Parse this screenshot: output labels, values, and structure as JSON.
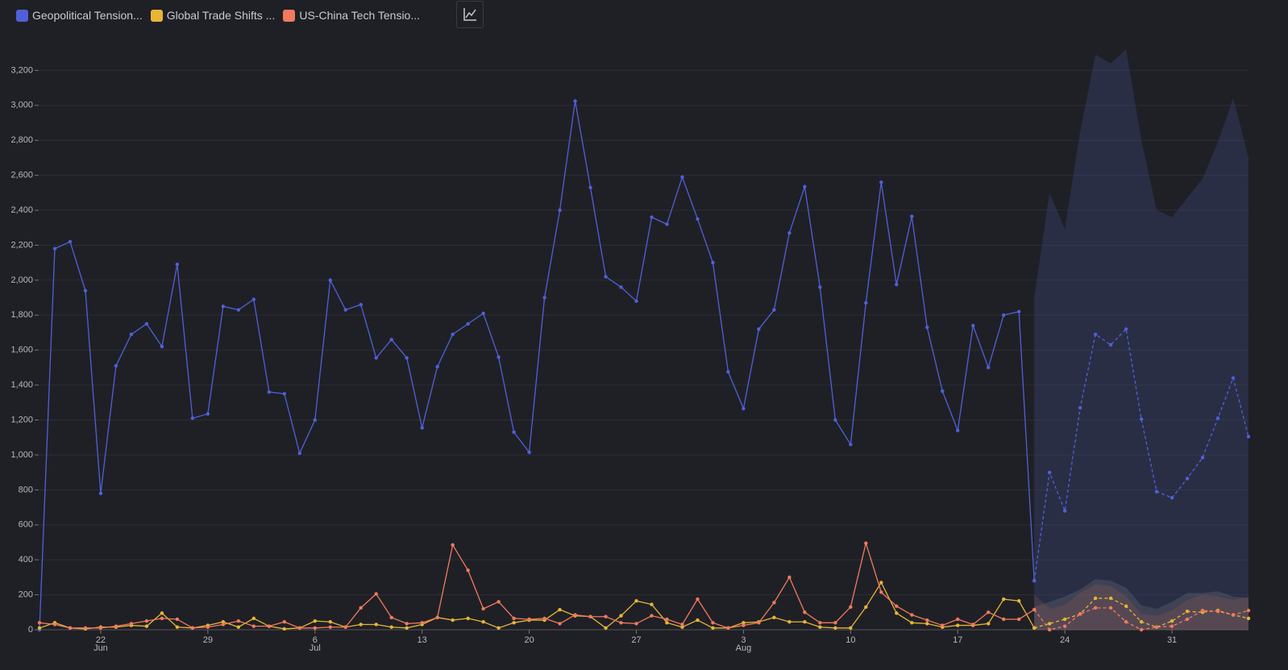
{
  "chart_data": {
    "type": "line",
    "x": [
      "Jun 18",
      "Jun 19",
      "Jun 20",
      "Jun 21",
      "Jun 22",
      "Jun 23",
      "Jun 24",
      "Jun 25",
      "Jun 26",
      "Jun 27",
      "Jun 28",
      "Jun 29",
      "Jun 30",
      "Jul 1",
      "Jul 2",
      "Jul 3",
      "Jul 4",
      "Jul 5",
      "Jul 6",
      "Jul 7",
      "Jul 8",
      "Jul 9",
      "Jul 10",
      "Jul 11",
      "Jul 12",
      "Jul 13",
      "Jul 14",
      "Jul 15",
      "Jul 16",
      "Jul 17",
      "Jul 18",
      "Jul 19",
      "Jul 20",
      "Jul 21",
      "Jul 22",
      "Jul 23",
      "Jul 24",
      "Jul 25",
      "Jul 26",
      "Jul 27",
      "Jul 28",
      "Jul 29",
      "Jul 30",
      "Jul 31",
      "Aug 1",
      "Aug 2",
      "Aug 3",
      "Aug 4",
      "Aug 5",
      "Aug 6",
      "Aug 7",
      "Aug 8",
      "Aug 9",
      "Aug 10",
      "Aug 11",
      "Aug 12",
      "Aug 13",
      "Aug 14",
      "Aug 15",
      "Aug 16",
      "Aug 17",
      "Aug 18",
      "Aug 19",
      "Aug 20",
      "Aug 21",
      "Aug 22"
    ],
    "forecast_x": [
      "Aug 22",
      "Aug 23",
      "Aug 24",
      "Aug 25",
      "Aug 26",
      "Aug 27",
      "Aug 28",
      "Aug 29",
      "Aug 30",
      "Aug 31",
      "Sep 1",
      "Sep 2",
      "Sep 3",
      "Sep 4",
      "Sep 5"
    ],
    "series": [
      {
        "name": "Geopolitical Tension...",
        "color": "#5060d8",
        "band_color": "rgba(70,82,150,0.28)",
        "values": [
          0,
          2180,
          2220,
          1940,
          780,
          1510,
          1690,
          1750,
          1620,
          2090,
          1210,
          1235,
          1850,
          1830,
          1890,
          1360,
          1350,
          1010,
          1200,
          2000,
          1830,
          1860,
          1555,
          1660,
          1555,
          1155,
          1505,
          1690,
          1750,
          1810,
          1560,
          1130,
          1015,
          1900,
          2400,
          3025,
          2530,
          2020,
          1960,
          1880,
          2360,
          2320,
          2590,
          2350,
          2100,
          1475,
          1265,
          1720,
          1830,
          2270,
          2535,
          1960,
          1200,
          1060,
          1870,
          2560,
          1975,
          2365,
          1730,
          1365,
          1140,
          1740,
          1500,
          1800,
          1820,
          280
        ],
        "forecast": [
          280,
          900,
          680,
          1270,
          1690,
          1630,
          1720,
          1205,
          790,
          755,
          865,
          985,
          1210,
          1440,
          1105
        ],
        "forecast_lower": [
          0,
          0,
          0,
          0,
          0,
          0,
          0,
          0,
          0,
          0,
          0,
          0,
          0,
          0,
          0
        ],
        "forecast_upper": [
          1900,
          2500,
          2290,
          2850,
          3290,
          3240,
          3320,
          2800,
          2400,
          2360,
          2470,
          2580,
          2790,
          3040,
          2700
        ]
      },
      {
        "name": "Global Trade Shifts ...",
        "color": "#e8b535",
        "band_color": "rgba(140,140,140,0.22)",
        "values": [
          10,
          40,
          10,
          5,
          15,
          15,
          25,
          20,
          95,
          15,
          10,
          25,
          45,
          15,
          65,
          20,
          5,
          10,
          50,
          45,
          15,
          30,
          30,
          15,
          10,
          30,
          70,
          55,
          65,
          45,
          10,
          40,
          55,
          55,
          115,
          80,
          75,
          10,
          80,
          165,
          145,
          40,
          15,
          55,
          10,
          10,
          40,
          45,
          70,
          45,
          45,
          15,
          10,
          10,
          130,
          270,
          95,
          40,
          35,
          15,
          25,
          25,
          35,
          175,
          165,
          10
        ],
        "forecast": [
          10,
          35,
          60,
          90,
          180,
          180,
          135,
          45,
          15,
          50,
          105,
          100,
          110,
          85,
          65
        ],
        "forecast_lower": [
          0,
          0,
          0,
          0,
          0,
          0,
          0,
          0,
          0,
          0,
          0,
          0,
          0,
          0,
          0
        ],
        "forecast_upper": [
          130,
          160,
          190,
          230,
          290,
          280,
          240,
          140,
          120,
          160,
          210,
          210,
          220,
          190,
          180
        ]
      },
      {
        "name": "US-China Tech Tensio...",
        "color": "#f07a5e",
        "band_color": "rgba(150,90,80,0.25)",
        "values": [
          40,
          30,
          10,
          10,
          10,
          20,
          35,
          50,
          65,
          60,
          10,
          15,
          30,
          50,
          20,
          20,
          45,
          10,
          10,
          15,
          15,
          125,
          205,
          70,
          35,
          40,
          70,
          485,
          340,
          120,
          160,
          65,
          60,
          65,
          35,
          85,
          75,
          75,
          40,
          35,
          80,
          60,
          30,
          175,
          40,
          10,
          25,
          40,
          155,
          300,
          100,
          40,
          40,
          130,
          495,
          215,
          135,
          85,
          55,
          25,
          60,
          30,
          100,
          60,
          60,
          115
        ],
        "forecast": [
          115,
          0,
          20,
          90,
          125,
          125,
          45,
          0,
          15,
          20,
          60,
          110,
          105,
          85,
          110
        ],
        "forecast_lower": [
          0,
          0,
          0,
          0,
          0,
          0,
          0,
          0,
          0,
          0,
          0,
          0,
          0,
          0,
          0
        ],
        "forecast_upper": [
          200,
          120,
          140,
          210,
          260,
          250,
          190,
          90,
          80,
          110,
          170,
          200,
          190,
          170,
          190
        ]
      }
    ],
    "ylim": [
      0,
      3400
    ],
    "yticks": [
      0,
      200,
      400,
      600,
      800,
      {
        "value": 1000,
        "label": "1,000"
      },
      {
        "value": 1200,
        "label": "1,200"
      },
      {
        "value": 1400,
        "label": "1,400"
      },
      {
        "value": 1600,
        "label": "1,600"
      },
      {
        "value": 1800,
        "label": "1,800"
      },
      {
        "value": 2000,
        "label": "2,000"
      },
      {
        "value": 2200,
        "label": "2,200"
      },
      {
        "value": 2400,
        "label": "2,400"
      },
      {
        "value": 2600,
        "label": "2,600"
      },
      {
        "value": 2800,
        "label": "2,800"
      },
      {
        "value": 3000,
        "label": "3,000"
      },
      {
        "value": 3200,
        "label": "3,200"
      }
    ],
    "xticks": [
      {
        "value": "Jun 22",
        "label": "22",
        "month": "Jun"
      },
      {
        "value": "Jun 29",
        "label": "29"
      },
      {
        "value": "Jul 6",
        "label": "6",
        "month": "Jul"
      },
      {
        "value": "Jul 13",
        "label": "13"
      },
      {
        "value": "Jul 20",
        "label": "20"
      },
      {
        "value": "Jul 27",
        "label": "27"
      },
      {
        "value": "Aug 3",
        "label": "3",
        "month": "Aug"
      },
      {
        "value": "Aug 10",
        "label": "10"
      },
      {
        "value": "Aug 17",
        "label": "17"
      },
      {
        "value": "Aug 24",
        "label": "24"
      },
      {
        "value": "Aug 31",
        "label": "31"
      }
    ],
    "grid": true
  }
}
